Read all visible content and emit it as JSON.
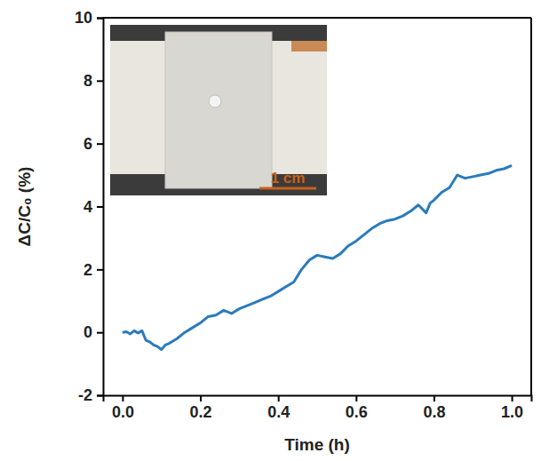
{
  "chart_data": {
    "type": "line",
    "xlabel": "Time (h)",
    "ylabel": "ΔC/C₀ (%)",
    "annotation": "1 cm",
    "x": [
      0,
      0.01,
      0.02,
      0.03,
      0.04,
      0.05,
      0.06,
      0.07,
      0.08,
      0.09,
      0.1,
      0.11,
      0.12,
      0.14,
      0.16,
      0.18,
      0.2,
      0.22,
      0.24,
      0.26,
      0.28,
      0.3,
      0.32,
      0.34,
      0.36,
      0.38,
      0.4,
      0.42,
      0.44,
      0.46,
      0.48,
      0.5,
      0.52,
      0.54,
      0.56,
      0.58,
      0.6,
      0.62,
      0.64,
      0.66,
      0.68,
      0.7,
      0.72,
      0.74,
      0.76,
      0.78,
      0.79,
      0.8,
      0.82,
      0.84,
      0.86,
      0.88,
      0.9,
      0.92,
      0.94,
      0.96,
      0.98,
      1.0
    ],
    "series": [
      {
        "color": "#2a7bbd",
        "line_style": "solid",
        "values": [
          0,
          0.02,
          -0.05,
          0.05,
          -0.02,
          0.05,
          -0.25,
          -0.3,
          -0.4,
          -0.45,
          -0.55,
          -0.4,
          -0.35,
          -0.2,
          0.0,
          0.15,
          0.3,
          0.5,
          0.55,
          0.7,
          0.6,
          0.75,
          0.85,
          0.95,
          1.05,
          1.15,
          1.3,
          1.45,
          1.6,
          2.0,
          2.3,
          2.45,
          2.4,
          2.35,
          2.5,
          2.75,
          2.9,
          3.1,
          3.3,
          3.45,
          3.55,
          3.6,
          3.7,
          3.85,
          4.05,
          3.8,
          4.1,
          4.2,
          4.45,
          4.6,
          5.0,
          4.9,
          4.95,
          5.0,
          5.05,
          5.15,
          5.2,
          5.3
        ]
      }
    ],
    "xlim": [
      -0.05,
      1.05
    ],
    "xticks": [
      {
        "value": 0,
        "label": "0.0"
      },
      {
        "value": 0.2,
        "label": "0.2"
      },
      {
        "value": 0.4,
        "label": "0.4"
      },
      {
        "value": 0.6,
        "label": "0.6"
      },
      {
        "value": 0.8,
        "label": "0.8"
      },
      {
        "value": 1,
        "label": "1.0"
      }
    ],
    "ylim": [
      -2,
      10
    ],
    "yticks": [
      -2,
      0,
      2,
      4,
      6,
      8,
      10
    ],
    "grid": false
  }
}
